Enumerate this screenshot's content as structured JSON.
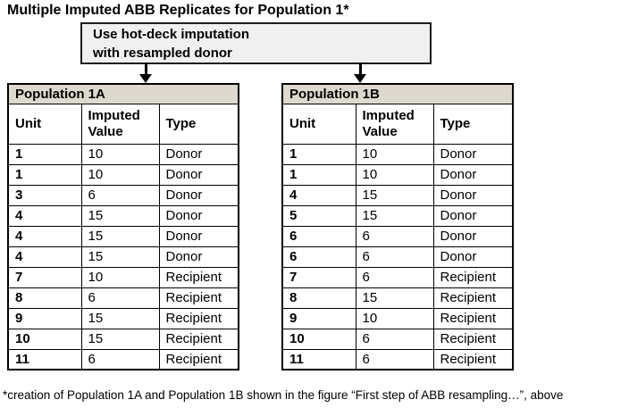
{
  "title": "Multiple Imputed ABB Replicates for Population 1*",
  "process_box": {
    "line1": "Use hot-deck imputation",
    "line2": "with resampled donor"
  },
  "tables": [
    {
      "name": "Population 1A",
      "columns": [
        "Unit",
        "Imputed Value",
        "Type"
      ],
      "rows": [
        [
          "1",
          "10",
          "Donor"
        ],
        [
          "1",
          "10",
          "Donor"
        ],
        [
          "3",
          "6",
          "Donor"
        ],
        [
          "4",
          "15",
          "Donor"
        ],
        [
          "4",
          "15",
          "Donor"
        ],
        [
          "4",
          "15",
          "Donor"
        ],
        [
          "7",
          "10",
          "Recipient"
        ],
        [
          "8",
          "6",
          "Recipient"
        ],
        [
          "9",
          "15",
          "Recipient"
        ],
        [
          "10",
          "15",
          "Recipient"
        ],
        [
          "11",
          "6",
          "Recipient"
        ]
      ]
    },
    {
      "name": "Population 1B",
      "columns": [
        "Unit",
        "Imputed Value",
        "Type"
      ],
      "rows": [
        [
          "1",
          "10",
          "Donor"
        ],
        [
          "1",
          "10",
          "Donor"
        ],
        [
          "4",
          "15",
          "Donor"
        ],
        [
          "5",
          "15",
          "Donor"
        ],
        [
          "6",
          "6",
          "Donor"
        ],
        [
          "6",
          "6",
          "Donor"
        ],
        [
          "7",
          "6",
          "Recipient"
        ],
        [
          "8",
          "15",
          "Recipient"
        ],
        [
          "9",
          "10",
          "Recipient"
        ],
        [
          "10",
          "6",
          "Recipient"
        ],
        [
          "11",
          "6",
          "Recipient"
        ]
      ]
    }
  ],
  "footnote": "*creation of Population 1A and Population 1B shown in the figure “First step of ABB resampling…”, above",
  "colors": {
    "table_title_bg": "#ddd9ce",
    "process_box_bg": "#f0f0f0",
    "border": "#000000"
  }
}
